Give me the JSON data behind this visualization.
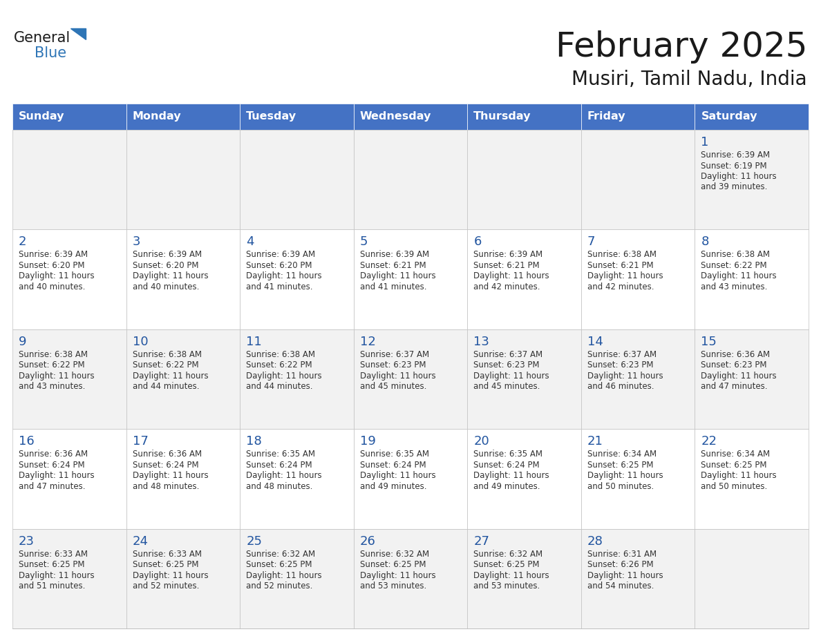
{
  "title": "February 2025",
  "subtitle": "Musiri, Tamil Nadu, India",
  "days_of_week": [
    "Sunday",
    "Monday",
    "Tuesday",
    "Wednesday",
    "Thursday",
    "Friday",
    "Saturday"
  ],
  "header_bg": "#4472C4",
  "header_text": "#FFFFFF",
  "cell_bg_row0": "#F2F2F2",
  "cell_bg_row1": "#FFFFFF",
  "border_color": "#C0C0C0",
  "title_color": "#1a1a1a",
  "subtitle_color": "#1a1a1a",
  "day_number_color": "#2255A0",
  "info_color": "#333333",
  "calendar": [
    [
      null,
      null,
      null,
      null,
      null,
      null,
      {
        "day": 1,
        "sunrise": "6:39 AM",
        "sunset": "6:19 PM",
        "daylight_line1": "11 hours",
        "daylight_line2": "and 39 minutes."
      }
    ],
    [
      {
        "day": 2,
        "sunrise": "6:39 AM",
        "sunset": "6:20 PM",
        "daylight_line1": "11 hours",
        "daylight_line2": "and 40 minutes."
      },
      {
        "day": 3,
        "sunrise": "6:39 AM",
        "sunset": "6:20 PM",
        "daylight_line1": "11 hours",
        "daylight_line2": "and 40 minutes."
      },
      {
        "day": 4,
        "sunrise": "6:39 AM",
        "sunset": "6:20 PM",
        "daylight_line1": "11 hours",
        "daylight_line2": "and 41 minutes."
      },
      {
        "day": 5,
        "sunrise": "6:39 AM",
        "sunset": "6:21 PM",
        "daylight_line1": "11 hours",
        "daylight_line2": "and 41 minutes."
      },
      {
        "day": 6,
        "sunrise": "6:39 AM",
        "sunset": "6:21 PM",
        "daylight_line1": "11 hours",
        "daylight_line2": "and 42 minutes."
      },
      {
        "day": 7,
        "sunrise": "6:38 AM",
        "sunset": "6:21 PM",
        "daylight_line1": "11 hours",
        "daylight_line2": "and 42 minutes."
      },
      {
        "day": 8,
        "sunrise": "6:38 AM",
        "sunset": "6:22 PM",
        "daylight_line1": "11 hours",
        "daylight_line2": "and 43 minutes."
      }
    ],
    [
      {
        "day": 9,
        "sunrise": "6:38 AM",
        "sunset": "6:22 PM",
        "daylight_line1": "11 hours",
        "daylight_line2": "and 43 minutes."
      },
      {
        "day": 10,
        "sunrise": "6:38 AM",
        "sunset": "6:22 PM",
        "daylight_line1": "11 hours",
        "daylight_line2": "and 44 minutes."
      },
      {
        "day": 11,
        "sunrise": "6:38 AM",
        "sunset": "6:22 PM",
        "daylight_line1": "11 hours",
        "daylight_line2": "and 44 minutes."
      },
      {
        "day": 12,
        "sunrise": "6:37 AM",
        "sunset": "6:23 PM",
        "daylight_line1": "11 hours",
        "daylight_line2": "and 45 minutes."
      },
      {
        "day": 13,
        "sunrise": "6:37 AM",
        "sunset": "6:23 PM",
        "daylight_line1": "11 hours",
        "daylight_line2": "and 45 minutes."
      },
      {
        "day": 14,
        "sunrise": "6:37 AM",
        "sunset": "6:23 PM",
        "daylight_line1": "11 hours",
        "daylight_line2": "and 46 minutes."
      },
      {
        "day": 15,
        "sunrise": "6:36 AM",
        "sunset": "6:23 PM",
        "daylight_line1": "11 hours",
        "daylight_line2": "and 47 minutes."
      }
    ],
    [
      {
        "day": 16,
        "sunrise": "6:36 AM",
        "sunset": "6:24 PM",
        "daylight_line1": "11 hours",
        "daylight_line2": "and 47 minutes."
      },
      {
        "day": 17,
        "sunrise": "6:36 AM",
        "sunset": "6:24 PM",
        "daylight_line1": "11 hours",
        "daylight_line2": "and 48 minutes."
      },
      {
        "day": 18,
        "sunrise": "6:35 AM",
        "sunset": "6:24 PM",
        "daylight_line1": "11 hours",
        "daylight_line2": "and 48 minutes."
      },
      {
        "day": 19,
        "sunrise": "6:35 AM",
        "sunset": "6:24 PM",
        "daylight_line1": "11 hours",
        "daylight_line2": "and 49 minutes."
      },
      {
        "day": 20,
        "sunrise": "6:35 AM",
        "sunset": "6:24 PM",
        "daylight_line1": "11 hours",
        "daylight_line2": "and 49 minutes."
      },
      {
        "day": 21,
        "sunrise": "6:34 AM",
        "sunset": "6:25 PM",
        "daylight_line1": "11 hours",
        "daylight_line2": "and 50 minutes."
      },
      {
        "day": 22,
        "sunrise": "6:34 AM",
        "sunset": "6:25 PM",
        "daylight_line1": "11 hours",
        "daylight_line2": "and 50 minutes."
      }
    ],
    [
      {
        "day": 23,
        "sunrise": "6:33 AM",
        "sunset": "6:25 PM",
        "daylight_line1": "11 hours",
        "daylight_line2": "and 51 minutes."
      },
      {
        "day": 24,
        "sunrise": "6:33 AM",
        "sunset": "6:25 PM",
        "daylight_line1": "11 hours",
        "daylight_line2": "and 52 minutes."
      },
      {
        "day": 25,
        "sunrise": "6:32 AM",
        "sunset": "6:25 PM",
        "daylight_line1": "11 hours",
        "daylight_line2": "and 52 minutes."
      },
      {
        "day": 26,
        "sunrise": "6:32 AM",
        "sunset": "6:25 PM",
        "daylight_line1": "11 hours",
        "daylight_line2": "and 53 minutes."
      },
      {
        "day": 27,
        "sunrise": "6:32 AM",
        "sunset": "6:25 PM",
        "daylight_line1": "11 hours",
        "daylight_line2": "and 53 minutes."
      },
      {
        "day": 28,
        "sunrise": "6:31 AM",
        "sunset": "6:26 PM",
        "daylight_line1": "11 hours",
        "daylight_line2": "and 54 minutes."
      },
      null
    ]
  ]
}
